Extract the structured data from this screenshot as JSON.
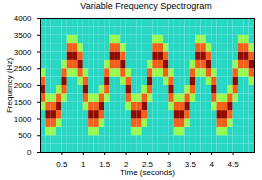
{
  "chart_data": {
    "type": "heatmap",
    "title": "Variable Frequency Spectrogram",
    "x_label": "Time (seconds)",
    "y_label": "Frequency (Hz)",
    "xlim": [
      0,
      5
    ],
    "xticks": [
      0.5,
      1,
      1.5,
      2,
      2.5,
      3,
      3.5,
      4,
      4.5
    ],
    "ylim": [
      0,
      4000
    ],
    "yticks": [
      0,
      500,
      1000,
      1500,
      2000,
      2500,
      3000,
      3500,
      4000
    ],
    "color_range": [
      0,
      10
    ],
    "time": [
      0.0625,
      0.1875,
      0.3125,
      0.4375,
      0.5625,
      0.6875,
      0.8125,
      0.9375,
      1.0625,
      1.1875,
      1.3125,
      1.4375,
      1.5625,
      1.6875,
      1.8125,
      1.9375,
      2.0625,
      2.1875,
      2.3125,
      2.4375,
      2.5625,
      2.6875,
      2.8125,
      2.9375,
      3.0625,
      3.1875,
      3.3125,
      3.4375,
      3.5625,
      3.6875,
      3.8125,
      3.9375,
      4.0625,
      4.1875,
      4.3125,
      4.4375,
      4.5625,
      4.6875,
      4.8125,
      4.9375
    ],
    "frequency": [
      125,
      375,
      625,
      875,
      1125,
      1375,
      1625,
      1875,
      2125,
      2375,
      2625,
      2875,
      3125,
      3375,
      3625,
      3875
    ],
    "intensity": [
      [
        3,
        3,
        3,
        3,
        3,
        5,
        8,
        10,
        8,
        5,
        3,
        3,
        3,
        3,
        3,
        3
      ],
      [
        3,
        3,
        5,
        8,
        10,
        8,
        5,
        3,
        3,
        3,
        3,
        3,
        3,
        3,
        3,
        3
      ],
      [
        3,
        3,
        5,
        8,
        10,
        8,
        5,
        3,
        3,
        3,
        3,
        3,
        3,
        3,
        3,
        3
      ],
      [
        3,
        3,
        3,
        5,
        8,
        10,
        8,
        5,
        3,
        3,
        3,
        3,
        3,
        3,
        3,
        3
      ],
      [
        3,
        3,
        3,
        3,
        3,
        3,
        5,
        8,
        10,
        8,
        5,
        3,
        3,
        3,
        3,
        3
      ],
      [
        3,
        3,
        3,
        3,
        3,
        3,
        3,
        3,
        3,
        5,
        8,
        10,
        8,
        5,
        3,
        3
      ],
      [
        3,
        3,
        3,
        3,
        3,
        3,
        3,
        3,
        3,
        5,
        8,
        10,
        8,
        5,
        3,
        3
      ],
      [
        3,
        3,
        3,
        3,
        3,
        3,
        3,
        3,
        5,
        8,
        10,
        8,
        5,
        3,
        3,
        3
      ],
      [
        3,
        3,
        3,
        3,
        3,
        5,
        8,
        10,
        8,
        5,
        3,
        3,
        3,
        3,
        3,
        3
      ],
      [
        3,
        3,
        5,
        8,
        10,
        8,
        5,
        3,
        3,
        3,
        3,
        3,
        3,
        3,
        3,
        3
      ],
      [
        3,
        3,
        5,
        8,
        10,
        8,
        5,
        3,
        3,
        3,
        3,
        3,
        3,
        3,
        3,
        3
      ],
      [
        3,
        3,
        3,
        5,
        8,
        10,
        8,
        5,
        3,
        3,
        3,
        3,
        3,
        3,
        3,
        3
      ],
      [
        3,
        3,
        3,
        3,
        3,
        3,
        5,
        8,
        10,
        8,
        5,
        3,
        3,
        3,
        3,
        3
      ],
      [
        3,
        3,
        3,
        3,
        3,
        3,
        3,
        3,
        3,
        5,
        8,
        10,
        8,
        5,
        3,
        3
      ],
      [
        3,
        3,
        3,
        3,
        3,
        3,
        3,
        3,
        3,
        5,
        8,
        10,
        8,
        5,
        3,
        3
      ],
      [
        3,
        3,
        3,
        3,
        3,
        3,
        3,
        3,
        5,
        8,
        10,
        8,
        5,
        3,
        3,
        3
      ],
      [
        3,
        3,
        3,
        3,
        3,
        5,
        8,
        10,
        8,
        5,
        3,
        3,
        3,
        3,
        3,
        3
      ],
      [
        3,
        3,
        5,
        8,
        10,
        8,
        5,
        3,
        3,
        3,
        3,
        3,
        3,
        3,
        3,
        3
      ],
      [
        3,
        3,
        5,
        8,
        10,
        8,
        5,
        3,
        3,
        3,
        3,
        3,
        3,
        3,
        3,
        3
      ],
      [
        3,
        3,
        3,
        5,
        8,
        10,
        8,
        5,
        3,
        3,
        3,
        3,
        3,
        3,
        3,
        3
      ],
      [
        3,
        3,
        3,
        3,
        3,
        3,
        5,
        8,
        10,
        8,
        5,
        3,
        3,
        3,
        3,
        3
      ],
      [
        3,
        3,
        3,
        3,
        3,
        3,
        3,
        3,
        3,
        5,
        8,
        10,
        8,
        5,
        3,
        3
      ],
      [
        3,
        3,
        3,
        3,
        3,
        3,
        3,
        3,
        3,
        5,
        8,
        10,
        8,
        5,
        3,
        3
      ],
      [
        3,
        3,
        3,
        3,
        3,
        3,
        3,
        3,
        5,
        8,
        10,
        8,
        5,
        3,
        3,
        3
      ],
      [
        3,
        3,
        3,
        3,
        3,
        5,
        8,
        10,
        8,
        5,
        3,
        3,
        3,
        3,
        3,
        3
      ],
      [
        3,
        3,
        5,
        8,
        10,
        8,
        5,
        3,
        3,
        3,
        3,
        3,
        3,
        3,
        3,
        3
      ],
      [
        3,
        3,
        5,
        8,
        10,
        8,
        5,
        3,
        3,
        3,
        3,
        3,
        3,
        3,
        3,
        3
      ],
      [
        3,
        3,
        3,
        5,
        8,
        10,
        8,
        5,
        3,
        3,
        3,
        3,
        3,
        3,
        3,
        3
      ],
      [
        3,
        3,
        3,
        3,
        3,
        3,
        5,
        8,
        10,
        8,
        5,
        3,
        3,
        3,
        3,
        3
      ],
      [
        3,
        3,
        3,
        3,
        3,
        3,
        3,
        3,
        3,
        5,
        8,
        10,
        8,
        5,
        3,
        3
      ],
      [
        3,
        3,
        3,
        3,
        3,
        3,
        3,
        3,
        3,
        5,
        8,
        10,
        8,
        5,
        3,
        3
      ],
      [
        3,
        3,
        3,
        3,
        3,
        3,
        3,
        3,
        5,
        8,
        10,
        8,
        5,
        3,
        3,
        3
      ],
      [
        3,
        3,
        3,
        3,
        3,
        5,
        8,
        10,
        8,
        5,
        3,
        3,
        3,
        3,
        3,
        3
      ],
      [
        3,
        3,
        5,
        8,
        10,
        8,
        5,
        3,
        3,
        3,
        3,
        3,
        3,
        3,
        3,
        3
      ],
      [
        3,
        3,
        5,
        8,
        10,
        8,
        5,
        3,
        3,
        3,
        3,
        3,
        3,
        3,
        3,
        3
      ],
      [
        3,
        3,
        3,
        5,
        8,
        10,
        8,
        5,
        3,
        3,
        3,
        3,
        3,
        3,
        3,
        3
      ],
      [
        3,
        3,
        3,
        3,
        3,
        3,
        5,
        8,
        10,
        8,
        5,
        3,
        3,
        3,
        3,
        3
      ],
      [
        3,
        3,
        3,
        3,
        3,
        3,
        3,
        3,
        3,
        5,
        8,
        10,
        8,
        5,
        3,
        3
      ],
      [
        3,
        3,
        3,
        3,
        3,
        3,
        3,
        3,
        3,
        5,
        8,
        10,
        8,
        5,
        3,
        3
      ],
      [
        3,
        3,
        3,
        3,
        3,
        3,
        3,
        3,
        5,
        8,
        10,
        8,
        5,
        3,
        3,
        3
      ]
    ]
  }
}
